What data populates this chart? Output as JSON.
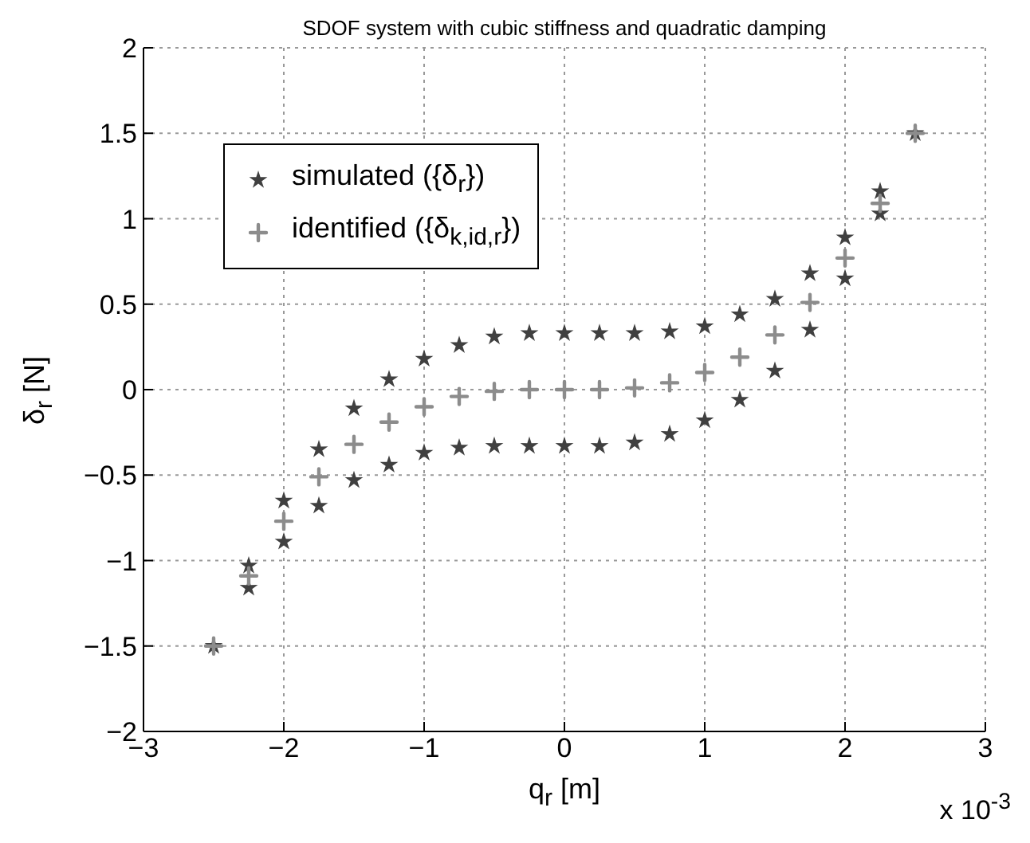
{
  "chart_data": {
    "type": "scatter",
    "title": "SDOF system with cubic stiffness and quadratic damping",
    "xlabel": "q$_{r}$  [m]",
    "ylabel": "δ$_{r}$  [N]",
    "annotations": [
      "x 10$^{-3}$"
    ],
    "xlim": [
      -3,
      3
    ],
    "xticks": [
      -3,
      -2,
      -1,
      0,
      1,
      2,
      3
    ],
    "ylim": [
      -2,
      2
    ],
    "yticks": [
      -2,
      -1.5,
      -1,
      -0.5,
      0,
      0.5,
      1,
      1.5,
      2
    ],
    "grid": true,
    "legend": "top left",
    "series": [
      {
        "name": "simulated ({δ$_{r}$})",
        "color": "#404040",
        "marker": "star",
        "x": [
          -2.5,
          -2.25,
          -2,
          -1.75,
          -1.5,
          -1.25,
          -1,
          -0.75,
          -0.5,
          -0.25,
          0,
          0.25,
          0.5,
          0.75,
          1,
          1.25,
          1.5,
          1.75,
          2,
          2.25,
          2.5,
          2.25,
          2,
          1.75,
          1.5,
          1.25,
          1,
          0.75,
          0.5,
          0.25,
          0,
          -0.25,
          -0.5,
          -0.75,
          -1,
          -1.25,
          -1.5,
          -1.75,
          -2,
          -2.25
        ],
        "values": [
          -1.5,
          -1.03,
          -0.65,
          -0.35,
          -0.11,
          0.06,
          0.18,
          0.26,
          0.31,
          0.33,
          0.33,
          0.33,
          0.33,
          0.34,
          0.37,
          0.44,
          0.53,
          0.68,
          0.89,
          1.16,
          1.5,
          1.03,
          0.65,
          0.35,
          0.11,
          -0.06,
          -0.18,
          -0.26,
          -0.31,
          -0.33,
          -0.33,
          -0.33,
          -0.33,
          -0.34,
          -0.37,
          -0.44,
          -0.53,
          -0.68,
          -0.89,
          -1.16
        ]
      },
      {
        "name": "identified ({δ$_{k,id,r}$})",
        "color": "#8c8c8c",
        "marker": "cross",
        "x": [
          -2.5,
          -2.25,
          -2,
          -1.75,
          -1.5,
          -1.25,
          -1,
          -0.75,
          -0.5,
          -0.25,
          0,
          0.25,
          0.5,
          0.75,
          1,
          1.25,
          1.5,
          1.75,
          2,
          2.25,
          2.5
        ],
        "values": [
          -1.5,
          -1.09,
          -0.77,
          -0.51,
          -0.32,
          -0.19,
          -0.1,
          -0.04,
          -0.01,
          0,
          0,
          0,
          0.01,
          0.04,
          0.1,
          0.19,
          0.32,
          0.51,
          0.77,
          1.09,
          1.5
        ]
      }
    ]
  }
}
